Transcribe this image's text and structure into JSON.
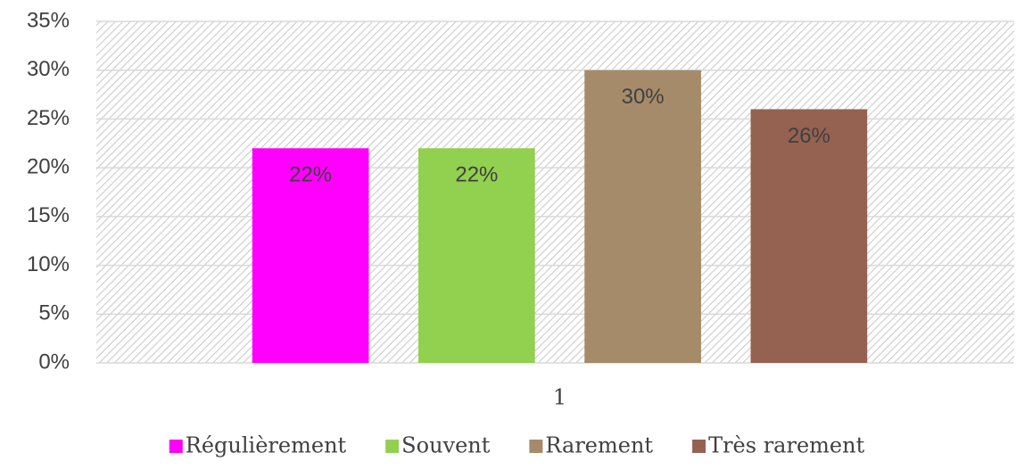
{
  "chart_data": {
    "type": "bar",
    "categories": [
      "1"
    ],
    "series": [
      {
        "name": "Régulièrement",
        "color": "#ff00ff",
        "values": [
          22
        ],
        "value_labels": [
          "22%"
        ]
      },
      {
        "name": "Souvent",
        "color": "#92d050",
        "values": [
          22
        ],
        "value_labels": [
          "22%"
        ]
      },
      {
        "name": "Rarement",
        "color": "#a58b6a",
        "values": [
          30
        ],
        "value_labels": [
          "30%"
        ]
      },
      {
        "name": "Très rarement",
        "color": "#956251",
        "values": [
          26
        ],
        "value_labels": [
          "26%"
        ]
      }
    ],
    "ylim": [
      0,
      35
    ],
    "yticks": [
      {
        "value": 0,
        "label": "0%"
      },
      {
        "value": 5,
        "label": "5%"
      },
      {
        "value": 10,
        "label": "10%"
      },
      {
        "value": 15,
        "label": "15%"
      },
      {
        "value": 20,
        "label": "20%"
      },
      {
        "value": 25,
        "label": "25%"
      },
      {
        "value": 30,
        "label": "30%"
      },
      {
        "value": 35,
        "label": "35%"
      }
    ],
    "grid": true,
    "legend": "bottom"
  }
}
